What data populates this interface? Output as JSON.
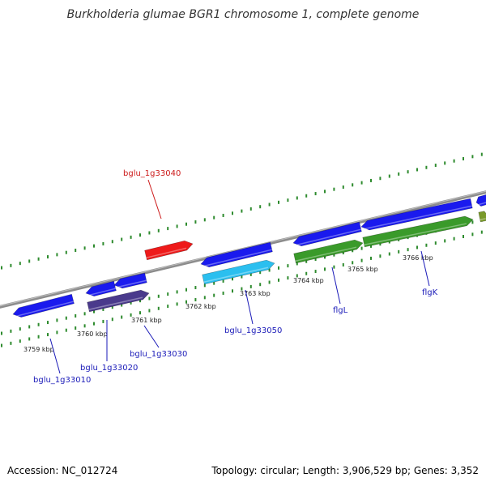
{
  "title": "Burkholderia glumae BGR1 chromosome 1, complete genome",
  "footer": {
    "accession": "Accession: NC_012724",
    "summary": "Topology: circular; Length: 3,906,529 bp; Genes: 3,352"
  },
  "colors": {
    "backbone": "#8c8c8c",
    "dotted_track": "#2e8b2e",
    "label_blue": "#1a1ab8",
    "label_red": "#cc1a1a",
    "gene_blue": "#1a1aee",
    "gene_navy": "#4a3a8c",
    "gene_cyan": "#2bbfef",
    "gene_green": "#3a9a2a",
    "gene_olive": "#7a9a2a",
    "gene_red": "#ee1a1a"
  },
  "ticks": [
    {
      "label": "3759 kbp"
    },
    {
      "label": "3760 kbp"
    },
    {
      "label": "3761 kbp"
    },
    {
      "label": "3762 kbp"
    },
    {
      "label": "3763 kbp"
    },
    {
      "label": "3764 kbp"
    },
    {
      "label": "3765 kbp"
    },
    {
      "label": "3766 kbp"
    }
  ],
  "gene_labels": [
    {
      "text": "bglu_1g33040",
      "color": "red"
    },
    {
      "text": "bglu_1g33010",
      "color": "blue"
    },
    {
      "text": "bglu_1g33020",
      "color": "blue"
    },
    {
      "text": "bglu_1g33030",
      "color": "blue"
    },
    {
      "text": "bglu_1g33050",
      "color": "blue"
    },
    {
      "text": "flgL",
      "color": "blue"
    },
    {
      "text": "flgK",
      "color": "blue"
    }
  ]
}
